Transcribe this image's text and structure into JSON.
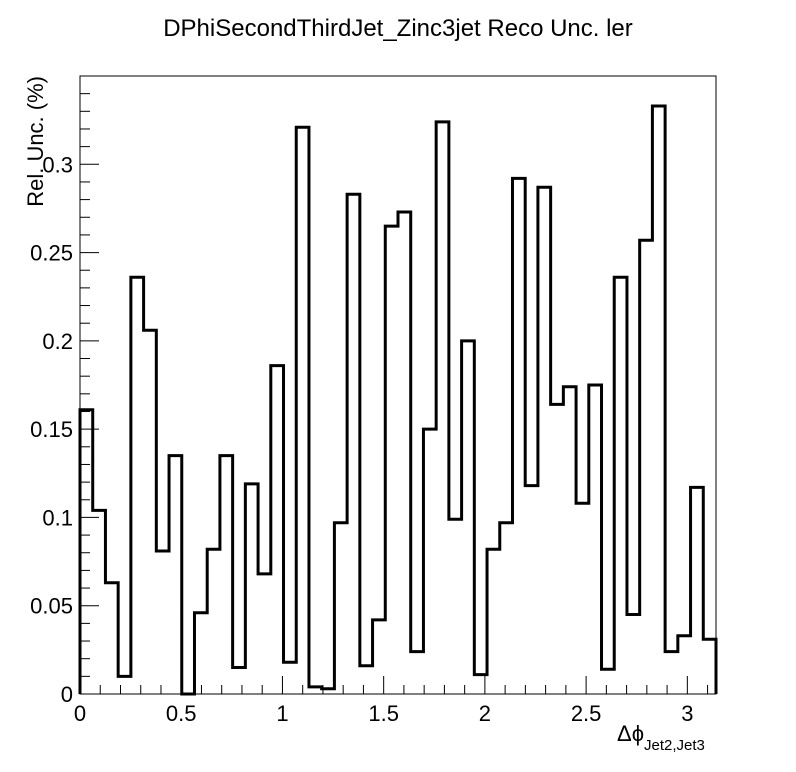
{
  "chart_data": {
    "type": "bar",
    "style": "step-histogram",
    "title": "DPhiSecondThirdJet_Zinc3jet Reco Unc. ler",
    "xlabel_main": "Δϕ",
    "xlabel_sub": "Jet2,Jet3",
    "ylabel": "Rel. Unc. (%)",
    "xlim": [
      0,
      3.1416
    ],
    "ylim": [
      0,
      0.35
    ],
    "xticks": [
      0,
      0.5,
      1,
      1.5,
      2,
      2.5,
      3
    ],
    "xtick_labels": [
      "0",
      "0.5",
      "1",
      "1.5",
      "2",
      "2.5",
      "3"
    ],
    "yticks": [
      0,
      0.05,
      0.1,
      0.15,
      0.2,
      0.25,
      0.3
    ],
    "ytick_labels": [
      "0",
      "0.05",
      "0.1",
      "0.15",
      "0.2",
      "0.25",
      "0.3"
    ],
    "grid": false,
    "legend": "none",
    "line_color": "#000000",
    "bins": 50,
    "values": [
      0.161,
      0.104,
      0.063,
      0.01,
      0.236,
      0.206,
      0.081,
      0.135,
      0.0,
      0.046,
      0.082,
      0.135,
      0.015,
      0.119,
      0.068,
      0.186,
      0.018,
      0.321,
      0.004,
      0.003,
      0.097,
      0.283,
      0.016,
      0.042,
      0.265,
      0.273,
      0.024,
      0.15,
      0.324,
      0.099,
      0.2,
      0.011,
      0.082,
      0.097,
      0.292,
      0.118,
      0.287,
      0.164,
      0.174,
      0.108,
      0.175,
      0.014,
      0.236,
      0.045,
      0.257,
      0.333,
      0.024,
      0.033,
      0.117,
      0.031
    ]
  }
}
